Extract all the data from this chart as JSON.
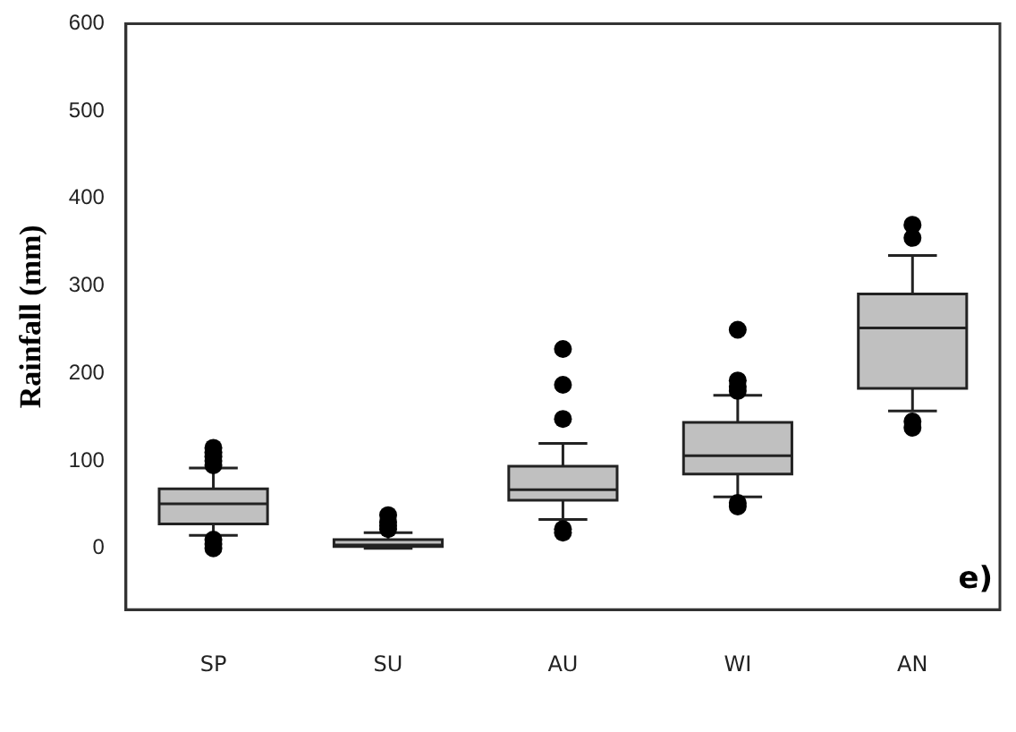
{
  "chart_data": {
    "type": "box",
    "ylabel": "Rainfall (mm)",
    "categories": [
      "SP",
      "SU",
      "AU",
      "WI",
      "AN"
    ],
    "color": "#c0c0c0",
    "boxes": [
      {
        "low": 15,
        "q1": 28,
        "median": 51,
        "q3": 68,
        "high": 92,
        "outliers": [
          95,
          100,
          105,
          110,
          115,
          0,
          5,
          10
        ]
      },
      {
        "low": 0,
        "q1": 2,
        "median": 4,
        "q3": 10,
        "high": 18,
        "outliers": [
          22,
          26,
          30,
          38
        ]
      },
      {
        "low": 33,
        "q1": 55,
        "median": 67,
        "q3": 94,
        "high": 120,
        "outliers": [
          148,
          187,
          228,
          18,
          22
        ]
      },
      {
        "low": 59,
        "q1": 85,
        "median": 106,
        "q3": 144,
        "high": 175,
        "outliers": [
          180,
          185,
          192,
          250,
          48,
          52
        ]
      },
      {
        "low": 157,
        "q1": 183,
        "median": 252,
        "q3": 291,
        "high": 335,
        "outliers": [
          355,
          370,
          138,
          145
        ]
      }
    ],
    "ylim": [
      -70,
      600
    ],
    "yticks": [
      0,
      100,
      200,
      300,
      400,
      500,
      600
    ],
    "grid": false,
    "legend": false,
    "annotations": [
      "e)"
    ]
  }
}
